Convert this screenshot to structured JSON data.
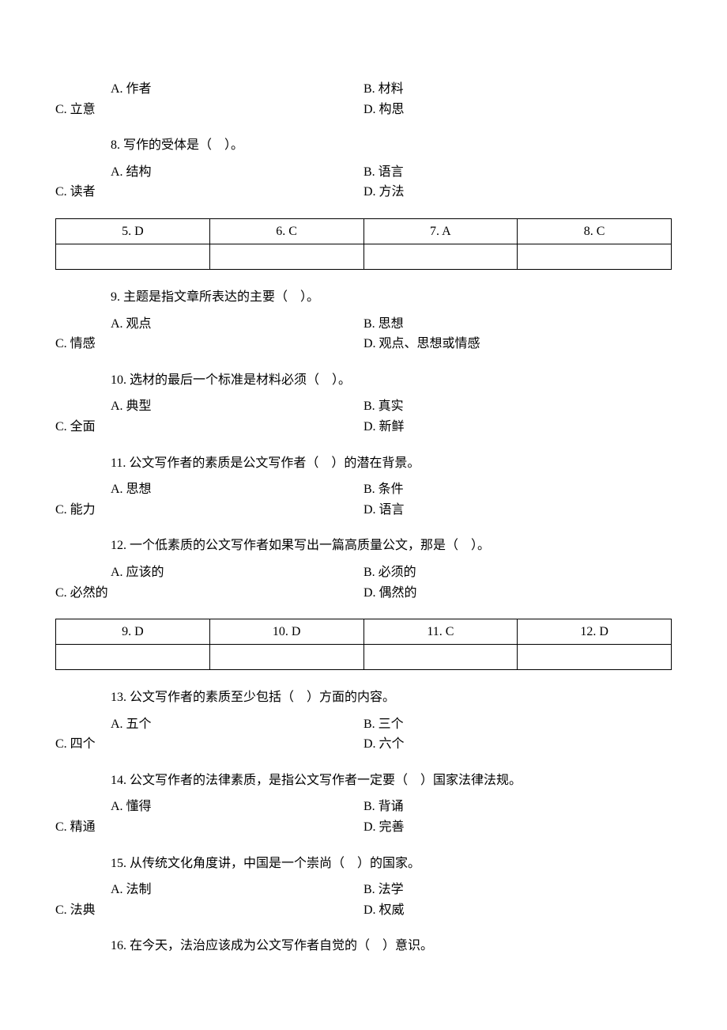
{
  "q7": {
    "optA": "A. 作者",
    "optB": "B. 材料",
    "optC": "C. 立意",
    "optD": "D. 构思"
  },
  "q8": {
    "text": "8. 写作的受体是（　）。",
    "optA": "A. 结构",
    "optB": "B. 语言",
    "optC": "C. 读者",
    "optD": "D. 方法"
  },
  "ansRow1": {
    "a": "5. D",
    "b": "6. C",
    "c": "7. A",
    "d": "8. C"
  },
  "q9": {
    "text": "9. 主题是指文章所表达的主要（　）。",
    "optA": "A. 观点",
    "optB": "B. 思想",
    "optC": "C. 情感",
    "optD": "D. 观点、思想或情感"
  },
  "q10": {
    "text": "10. 选材的最后一个标准是材料必须（　）。",
    "optA": "A. 典型",
    "optB": "B. 真实",
    "optC": "C. 全面",
    "optD": "D. 新鲜"
  },
  "q11": {
    "text": "11. 公文写作者的素质是公文写作者（　）的潜在背景。",
    "optA": "A. 思想",
    "optB": "B. 条件",
    "optC": "C. 能力",
    "optD": "D. 语言"
  },
  "q12": {
    "text": "12. 一个低素质的公文写作者如果写出一篇高质量公文，那是（　）。",
    "optA": "A. 应该的",
    "optB": "B. 必须的",
    "optC": "C. 必然的",
    "optD": "D. 偶然的"
  },
  "ansRow2": {
    "a": "9. D",
    "b": "10. D",
    "c": "11. C",
    "d": "12. D"
  },
  "q13": {
    "text": "13. 公文写作者的素质至少包括（　）方面的内容。",
    "optA": "A. 五个",
    "optB": "B. 三个",
    "optC": "C. 四个",
    "optD": "D. 六个"
  },
  "q14": {
    "text": "14. 公文写作者的法律素质，是指公文写作者一定要（　）国家法律法规。",
    "optA": "A. 懂得",
    "optB": "B. 背诵",
    "optC": "C. 精通",
    "optD": "D. 完善"
  },
  "q15": {
    "text": "15. 从传统文化角度讲，中国是一个崇尚（　）的国家。",
    "optA": "A. 法制",
    "optB": "B. 法学",
    "optC": "C. 法典",
    "optD": "D. 权威"
  },
  "q16": {
    "text": "16. 在今天，法治应该成为公文写作者自觉的（　）意识。"
  }
}
